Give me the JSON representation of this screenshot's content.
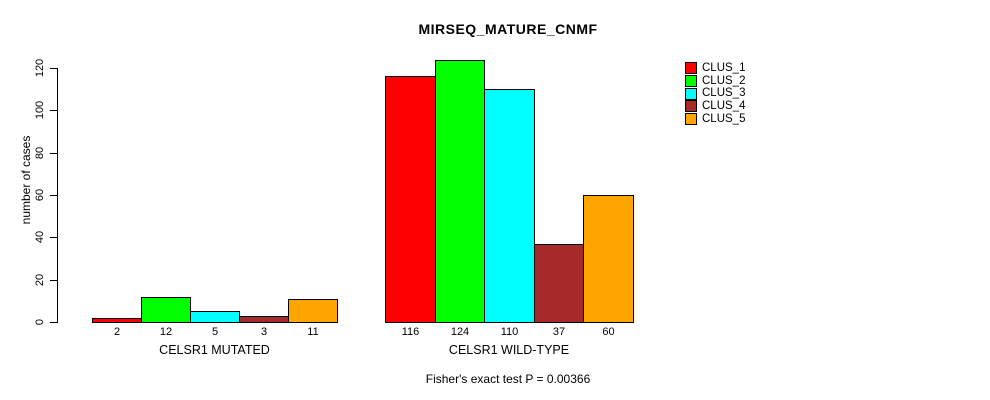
{
  "title": "MIRSEQ_MATURE_CNMF",
  "footer": "Fisher's exact test P = 0.00366",
  "y_axis": {
    "label": "number of cases",
    "ticks": [
      0,
      20,
      40,
      60,
      80,
      100,
      120
    ]
  },
  "legend": {
    "entries": [
      {
        "label": "CLUS_1",
        "color": "#FF0000"
      },
      {
        "label": "CLUS_2",
        "color": "#00FF00"
      },
      {
        "label": "CLUS_3",
        "color": "#00FFFF"
      },
      {
        "label": "CLUS_4",
        "color": "#A52A2A"
      },
      {
        "label": "CLUS_5",
        "color": "#FFA500"
      }
    ]
  },
  "chart_data": {
    "type": "bar",
    "title": "MIRSEQ_MATURE_CNMF",
    "categories": [
      "CELSR1 MUTATED",
      "CELSR1 WILD-TYPE"
    ],
    "series": [
      {
        "name": "CLUS_1",
        "color": "#FF0000",
        "values": [
          2,
          116
        ]
      },
      {
        "name": "CLUS_2",
        "color": "#00FF00",
        "values": [
          12,
          124
        ]
      },
      {
        "name": "CLUS_3",
        "color": "#00FFFF",
        "values": [
          5,
          110
        ]
      },
      {
        "name": "CLUS_4",
        "color": "#A52A2A",
        "values": [
          3,
          37
        ]
      },
      {
        "name": "CLUS_5",
        "color": "#FFA500",
        "values": [
          11,
          60
        ]
      }
    ],
    "bar_value_labels_shown": true,
    "xlabel": "",
    "ylabel": "number of cases",
    "ylim": [
      0,
      120
    ],
    "grid": false,
    "legend_position": "right",
    "annotation": "Fisher's exact test P = 0.00366"
  }
}
